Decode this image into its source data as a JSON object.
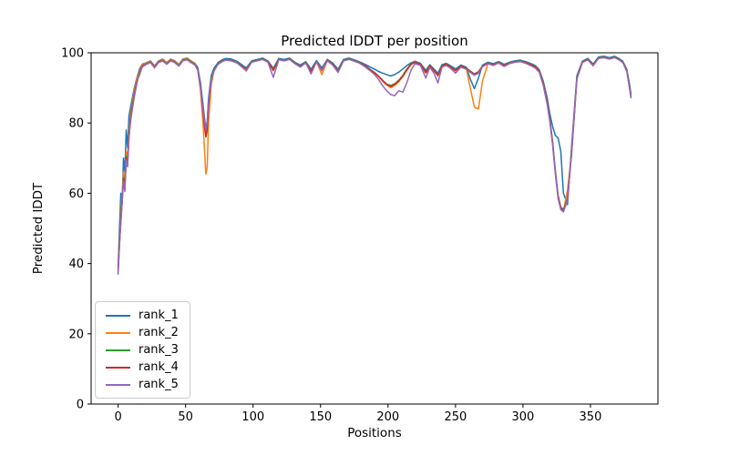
{
  "figure_background": "#ffffff",
  "chart_data": {
    "type": "line",
    "title": "Predicted lDDT per position",
    "xlabel": "Positions",
    "ylabel": "Predicted lDDT",
    "xlim": [
      -20,
      400
    ],
    "ylim": [
      0,
      100
    ],
    "xticks": [
      0,
      50,
      100,
      150,
      200,
      250,
      300,
      350
    ],
    "yticks": [
      0,
      20,
      40,
      60,
      80,
      100
    ],
    "grid": false,
    "legend_position": "lower-left",
    "line_width": 1.5,
    "x": [
      0,
      1,
      2,
      3,
      4,
      5,
      6,
      7,
      8,
      9,
      10,
      12,
      14,
      16,
      18,
      21,
      24,
      27,
      30,
      33,
      36,
      39,
      42,
      45,
      48,
      51,
      54,
      57,
      59,
      61,
      63,
      64,
      65,
      66,
      67,
      69,
      71,
      74,
      77,
      80,
      84,
      88,
      92,
      95,
      99,
      103,
      107,
      111,
      115,
      119,
      123,
      127,
      131,
      135,
      139,
      143,
      147,
      151,
      155,
      159,
      163,
      167,
      171,
      175,
      179,
      183,
      187,
      190,
      193,
      196,
      199,
      202,
      205,
      208,
      211,
      214,
      217,
      220,
      224,
      228,
      231,
      234,
      237,
      240,
      243,
      246,
      250,
      254,
      258,
      261,
      264,
      267,
      270,
      274,
      278,
      282,
      286,
      290,
      294,
      298,
      302,
      306,
      309,
      312,
      315,
      318,
      320,
      322,
      324,
      326,
      328,
      330,
      333,
      336,
      340,
      344,
      348,
      352,
      356,
      360,
      364,
      368,
      371,
      374,
      377,
      379,
      380
    ],
    "series": [
      {
        "name": "rank_1",
        "color": "#1f77b4",
        "values": [
          39,
          50,
          60,
          57,
          70,
          66,
          78,
          73,
          82,
          84,
          86,
          90,
          93,
          95.5,
          96.8,
          97.2,
          97.7,
          96.3,
          97.7,
          98.2,
          97.2,
          98.2,
          97.7,
          96.7,
          98.2,
          98.5,
          97.7,
          97,
          95.8,
          91.5,
          85,
          81.5,
          78.5,
          80.5,
          87,
          93.5,
          95.6,
          97.2,
          98,
          98.4,
          98.2,
          97.6,
          96.5,
          95.7,
          97.7,
          98.1,
          98.5,
          97.7,
          95.6,
          98.4,
          98.1,
          98.5,
          97.3,
          96.5,
          97.5,
          95.3,
          97.8,
          95.7,
          98.1,
          97.1,
          95.3,
          98.1,
          98.5,
          98,
          97.4,
          96.7,
          95.9,
          95.3,
          94.7,
          94.2,
          93.8,
          93.4,
          93.8,
          94.5,
          95.4,
          96.4,
          97.1,
          97.6,
          97,
          95,
          96.6,
          95.4,
          94.2,
          96.6,
          97,
          96.4,
          95.4,
          96.5,
          95.9,
          92.5,
          89.8,
          92.8,
          96.5,
          97.3,
          96.9,
          97.5,
          96.7,
          97.3,
          97.7,
          97.9,
          97.5,
          96.9,
          96.4,
          95.2,
          92,
          87,
          82.5,
          79,
          76.5,
          75.8,
          72,
          60,
          56.8,
          73,
          93.5,
          97.6,
          98.4,
          96.8,
          98.8,
          99,
          98.6,
          99,
          98.4,
          97.6,
          95.2,
          91,
          88.3
        ]
      },
      {
        "name": "rank_2",
        "color": "#ff7f0e",
        "values": [
          38.5,
          47,
          54,
          60,
          66,
          63,
          72,
          70,
          78,
          81.5,
          84.5,
          89.3,
          92.7,
          95.1,
          96.6,
          97.1,
          97.6,
          96.1,
          97.6,
          98.1,
          97.1,
          98.1,
          97.6,
          96.6,
          98.1,
          98.4,
          97.6,
          96.9,
          95.3,
          89.5,
          79.5,
          72.5,
          65.5,
          67.5,
          80,
          91,
          94.8,
          96.9,
          97.7,
          98.1,
          97.9,
          97.3,
          95.8,
          94.8,
          97.4,
          97.8,
          98.2,
          97.4,
          94.9,
          98.1,
          97.8,
          98.2,
          97,
          96,
          97.2,
          94.6,
          97.5,
          93.8,
          97.8,
          96.6,
          94.5,
          97.8,
          98.2,
          97.7,
          97.1,
          96.2,
          95.1,
          94.2,
          93.2,
          91.9,
          90.8,
          90.1,
          90.7,
          91.8,
          93.2,
          95,
          96.6,
          97.3,
          96.7,
          94.2,
          96.3,
          94.9,
          93.5,
          96.3,
          96.7,
          96.1,
          94.9,
          96.2,
          95.5,
          90,
          84.5,
          84,
          92,
          96.9,
          96.6,
          97.2,
          96.4,
          97,
          97.4,
          97.6,
          97.2,
          96.6,
          96.1,
          94.9,
          91,
          85.5,
          80.5,
          74,
          66,
          59,
          55.8,
          54.9,
          61,
          71,
          92.7,
          97.3,
          98.1,
          96.4,
          98.5,
          98.7,
          98.3,
          98.7,
          98.1,
          97.3,
          94.8,
          90,
          87.5
        ]
      },
      {
        "name": "rank_3",
        "color": "#2ca02c",
        "values": [
          38,
          46,
          52.5,
          58.5,
          64.5,
          61.5,
          70.5,
          68.5,
          76.5,
          80.5,
          83.5,
          88.5,
          92,
          93.8,
          96.2,
          96.9,
          97.4,
          95.9,
          97.4,
          97.9,
          96.9,
          97.9,
          97.4,
          96.4,
          97.9,
          98.2,
          97.4,
          96.7,
          95.4,
          90.5,
          83.5,
          79.5,
          76.5,
          78.5,
          85.5,
          92.5,
          95.2,
          96.9,
          97.7,
          98.1,
          97.9,
          97.3,
          96.1,
          95.3,
          97.5,
          97.9,
          98.3,
          97.5,
          95.1,
          98.2,
          97.9,
          98.3,
          97.1,
          96.1,
          97.3,
          94.8,
          97.6,
          95.2,
          97.9,
          96.9,
          94.8,
          97.9,
          98.3,
          97.8,
          97.2,
          96.4,
          95.2,
          94.4,
          93.4,
          92.2,
          91.1,
          90.7,
          91.2,
          92.2,
          93.6,
          95.4,
          96.9,
          97.4,
          96.8,
          94.4,
          96.4,
          95,
          93.6,
          96.4,
          96.8,
          96.2,
          95,
          96.3,
          95.7,
          94.8,
          94,
          94.6,
          96.3,
          97.1,
          96.7,
          97.3,
          96.5,
          97.1,
          97.5,
          97.7,
          97.3,
          96.7,
          96.2,
          95,
          91.5,
          86,
          81,
          74.5,
          66.5,
          59.5,
          56.1,
          55.4,
          58.6,
          72,
          93,
          97.5,
          98.2,
          96.6,
          98.6,
          98.8,
          98.4,
          98.8,
          98.2,
          97.4,
          95,
          90.2,
          87.8
        ]
      },
      {
        "name": "rank_4",
        "color": "#d62728",
        "values": [
          37.5,
          45.5,
          52,
          58,
          64,
          61,
          70,
          68,
          76,
          80,
          83,
          88,
          91.8,
          94.8,
          96.3,
          96.8,
          97.3,
          95.8,
          97.3,
          97.8,
          96.8,
          97.8,
          97.3,
          96.3,
          97.8,
          98.1,
          97.3,
          96.6,
          95.2,
          90,
          83,
          79,
          76,
          78,
          85,
          92,
          95,
          96.8,
          97.6,
          98,
          97.8,
          97.2,
          96,
          95.2,
          97.4,
          97.8,
          98.2,
          97.4,
          95,
          98.1,
          97.8,
          98.2,
          97,
          96,
          97.2,
          94.7,
          97.5,
          95.1,
          97.8,
          96.8,
          94.7,
          97.8,
          98.2,
          97.7,
          97.1,
          96.3,
          95.1,
          94.3,
          93.3,
          92.1,
          91,
          90.4,
          91,
          92,
          93.4,
          95.2,
          96.7,
          97.3,
          96.7,
          94.3,
          96.3,
          94.9,
          93.5,
          96.3,
          96.7,
          96.1,
          94.9,
          96.2,
          95.6,
          94.7,
          93.9,
          94.5,
          96.2,
          97,
          96.6,
          97.2,
          96.4,
          97,
          97.4,
          97.6,
          97.2,
          96.6,
          96.1,
          94.9,
          91.3,
          85.8,
          80.8,
          74.2,
          66.2,
          59.2,
          55.8,
          55.1,
          58.3,
          71.5,
          92.8,
          97.4,
          98.1,
          96.5,
          98.5,
          98.7,
          98.3,
          98.7,
          98.1,
          97.3,
          94.9,
          90,
          87.6
        ]
      },
      {
        "name": "rank_5",
        "color": "#9467bd",
        "values": [
          37,
          45,
          51.5,
          57.5,
          63.5,
          60.5,
          69.5,
          67.5,
          75.5,
          79.5,
          82.5,
          87.5,
          91.5,
          94.5,
          96,
          96.7,
          97.2,
          95.7,
          97.2,
          97.7,
          96.7,
          97.7,
          97.2,
          96.2,
          97.7,
          98,
          97.2,
          96.5,
          95,
          90.2,
          83.8,
          80.5,
          78,
          80,
          86,
          92.3,
          94.8,
          96.7,
          97.5,
          97.9,
          97.7,
          97.1,
          95.9,
          95,
          97.3,
          97.7,
          98.1,
          97.3,
          93,
          98,
          97.7,
          98.1,
          96.9,
          95.9,
          97.1,
          94,
          97.4,
          94.9,
          97.7,
          96.5,
          94.4,
          97.7,
          98.1,
          97.6,
          97,
          96,
          94.8,
          93.8,
          92.4,
          90.6,
          89.2,
          88.1,
          87.8,
          89.2,
          88.8,
          91.5,
          95,
          96.9,
          96.4,
          92.8,
          95.9,
          94.2,
          91.4,
          95.9,
          96.4,
          95.7,
          94.2,
          95.9,
          95.3,
          94.4,
          93.6,
          94.2,
          96,
          96.9,
          96.4,
          97.1,
          96.1,
          96.9,
          97.3,
          97.5,
          97,
          96.3,
          95.7,
          94.5,
          90.8,
          85.2,
          80.2,
          73.6,
          65.6,
          58.6,
          55.4,
          54.7,
          58,
          71,
          92.5,
          97.2,
          98,
          96.3,
          98.4,
          98.6,
          98.2,
          98.6,
          98,
          97.2,
          94.6,
          89.8,
          87.2
        ]
      }
    ]
  }
}
